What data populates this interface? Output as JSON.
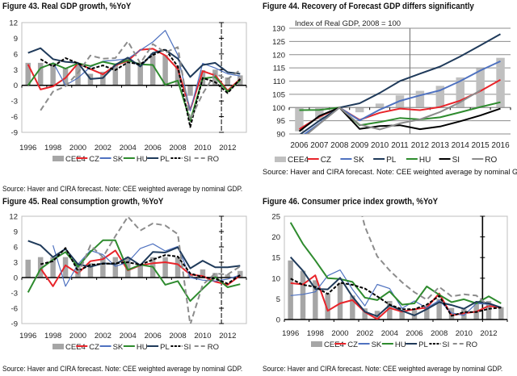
{
  "source_note": "Source: Haver and CIRA forecast. Note: CEE weighted average by nominal GDP.",
  "legend_colors": {
    "CEE4": "#a6a6a6",
    "CZ": "#e8242a",
    "SK": "#4f72c0",
    "HU": "#2e8b2e",
    "PL": "#1f3a5a",
    "SI": "#000000",
    "RO": "#8c8c8c"
  },
  "chart_data": [
    {
      "id": "fig43",
      "type": "bar+line",
      "title": "Figure 43. Real GDP growth, %YoY",
      "xlabel": "",
      "ylabel": "",
      "ylim": [
        -9,
        12
      ],
      "yticks": [
        -9,
        -6,
        -3,
        0,
        3,
        6,
        9,
        12
      ],
      "xtick_labels": [
        "1996",
        "1998",
        "2000",
        "2002",
        "2004",
        "2006",
        "2008",
        "2010",
        "2012"
      ],
      "x": [
        1996,
        1997,
        1998,
        1999,
        2000,
        2001,
        2002,
        2003,
        2004,
        2005,
        2006,
        2007,
        2008,
        2009,
        2010,
        2011,
        2012,
        2013
      ],
      "forecast_divider": 2011.5,
      "grid": false,
      "legend_position": "bottom",
      "bars": {
        "name": "CEE4",
        "values": [
          4.3,
          4.3,
          4.3,
          3.3,
          4.3,
          2.2,
          2.6,
          4.0,
          5.0,
          4.4,
          6.1,
          5.8,
          3.8,
          -2.0,
          2.9,
          3.0,
          1.5,
          1.9
        ]
      },
      "series": [
        {
          "name": "CZ",
          "style": "solid",
          "values": [
            4.0,
            -0.8,
            -0.2,
            1.4,
            4.2,
            3.1,
            2.1,
            3.8,
            4.7,
            6.8,
            7.0,
            5.7,
            3.1,
            -4.7,
            2.7,
            1.9,
            -1.0,
            1.2
          ]
        },
        {
          "name": "SK",
          "style": "solid-thin",
          "values": [
            null,
            null,
            4.4,
            0.0,
            1.4,
            3.5,
            4.6,
            4.8,
            5.1,
            6.7,
            8.3,
            10.5,
            5.8,
            -4.9,
            4.2,
            3.3,
            2.2,
            1.8
          ]
        },
        {
          "name": "HU",
          "style": "solid",
          "values": [
            0.0,
            3.3,
            4.2,
            3.2,
            4.2,
            3.7,
            4.5,
            4.0,
            4.8,
            4.0,
            3.9,
            0.1,
            0.9,
            -6.8,
            1.3,
            1.6,
            -1.2,
            1.0
          ]
        },
        {
          "name": "PL",
          "style": "solid",
          "values": [
            6.2,
            7.1,
            5.0,
            4.5,
            4.3,
            1.2,
            1.4,
            3.9,
            5.3,
            3.6,
            6.2,
            6.8,
            5.1,
            1.6,
            3.9,
            4.3,
            2.5,
            2.2
          ]
        },
        {
          "name": "SI",
          "style": "dashed-black",
          "values": [
            null,
            5.0,
            3.6,
            5.2,
            4.2,
            3.1,
            3.8,
            2.9,
            4.4,
            4.0,
            5.8,
            6.9,
            3.6,
            -8.0,
            1.4,
            0.6,
            -1.5,
            1.2
          ]
        },
        {
          "name": "RO",
          "style": "dashed-gray",
          "values": [
            null,
            -4.8,
            -1.2,
            -0.2,
            2.4,
            5.7,
            5.1,
            5.2,
            8.4,
            4.2,
            7.9,
            6.3,
            7.3,
            -6.6,
            -1.6,
            2.2,
            1.2,
            2.9
          ]
        }
      ]
    },
    {
      "id": "fig44",
      "type": "bar+line",
      "title": "Figure 44. Recovery of Forecast GDP differs significantly",
      "subtitle": "Index of Real GDP, 2008 = 100",
      "xlabel": "",
      "ylabel": "",
      "ylim": [
        90,
        130
      ],
      "yticks": [
        90,
        95,
        100,
        105,
        110,
        115,
        120,
        125,
        130
      ],
      "bar_base": 100,
      "xtick_labels": [
        "2006",
        "2007",
        "2008",
        "2009",
        "2010",
        "2011",
        "2012",
        "2013",
        "2014",
        "2015",
        "2016"
      ],
      "x": [
        2006,
        2007,
        2008,
        2009,
        2010,
        2011,
        2012,
        2013,
        2014,
        2015,
        2016
      ],
      "forecast_divider": 2011.5,
      "grid": true,
      "legend_position": "bottom",
      "bars": {
        "name": "CEE4",
        "values": [
          91.0,
          95.5,
          100.0,
          98.2,
          101.5,
          104.6,
          106.3,
          108.2,
          111.4,
          114.9,
          118.8
        ]
      },
      "series": [
        {
          "name": "CZ",
          "style": "solid",
          "values": [
            91.8,
            96.5,
            100.0,
            95.3,
            98.0,
            99.6,
            99.0,
            100.2,
            102.6,
            106.2,
            110.5
          ]
        },
        {
          "name": "SK",
          "style": "solid",
          "values": [
            88.5,
            94.0,
            100.0,
            95.1,
            99.2,
            102.5,
            104.6,
            106.5,
            110.0,
            114.0,
            117.5
          ]
        },
        {
          "name": "PL",
          "style": "solid",
          "values": [
            89.6,
            95.0,
            100.0,
            101.6,
            105.5,
            110.0,
            112.8,
            115.5,
            119.3,
            123.5,
            127.8
          ]
        },
        {
          "name": "HU",
          "style": "solid",
          "values": [
            99.0,
            99.1,
            100.0,
            93.3,
            94.5,
            96.0,
            95.5,
            96.3,
            98.2,
            100.2,
            102.0
          ]
        },
        {
          "name": "SI",
          "style": "solid",
          "values": [
            91.0,
            96.8,
            100.0,
            91.9,
            93.0,
            93.3,
            91.8,
            92.8,
            94.8,
            97.0,
            99.6
          ]
        },
        {
          "name": "RO",
          "style": "solid",
          "values": [
            87.5,
            93.8,
            100.0,
            93.5,
            91.7,
            94.0,
            95.5,
            98.3,
            102.0,
            106.5,
            null
          ]
        }
      ]
    },
    {
      "id": "fig45",
      "type": "bar+line",
      "title": "Figure 45. Real consumption growth, %YoY",
      "xlabel": "",
      "ylabel": "",
      "ylim": [
        -9,
        12
      ],
      "yticks": [
        -9,
        -6,
        -3,
        0,
        3,
        6,
        9,
        12
      ],
      "xtick_labels": [
        "1996",
        "1998",
        "2000",
        "2002",
        "2004",
        "2006",
        "2008",
        "2010",
        "2012"
      ],
      "x": [
        1996,
        1997,
        1998,
        1999,
        2000,
        2001,
        2002,
        2003,
        2004,
        2005,
        2006,
        2007,
        2008,
        2009,
        2010,
        2011,
        2012,
        2013
      ],
      "forecast_divider": 2011.5,
      "grid": false,
      "legend_position": "bottom",
      "bars": {
        "name": "CEE4",
        "values": [
          3.5,
          4.0,
          4.0,
          4.0,
          2.8,
          2.8,
          4.0,
          4.0,
          4.0,
          2.5,
          4.0,
          4.0,
          4.0,
          0.6,
          1.6,
          0.9,
          0.6,
          1.3
        ]
      },
      "series": [
        {
          "name": "CZ",
          "style": "solid",
          "values": [
            null,
            1.8,
            -1.7,
            2.4,
            0.8,
            3.2,
            3.6,
            5.3,
            1.4,
            2.4,
            2.8,
            3.0,
            2.6,
            0.6,
            0.3,
            -0.8,
            -1.4,
            0.4
          ]
        },
        {
          "name": "SK",
          "style": "solid-thin",
          "values": [
            null,
            null,
            6.3,
            -1.7,
            2.6,
            5.3,
            4.5,
            2.2,
            3.0,
            5.7,
            6.6,
            5.2,
            6.1,
            0.0,
            -0.5,
            -0.7,
            -0.3,
            0.5
          ]
        },
        {
          "name": "HU",
          "style": "solid",
          "values": [
            -2.9,
            1.7,
            3.5,
            5.0,
            2.1,
            5.0,
            7.3,
            7.3,
            1.5,
            2.5,
            2.1,
            -1.4,
            -0.7,
            -4.6,
            -2.2,
            0.1,
            -1.9,
            -1.3
          ]
        },
        {
          "name": "PL",
          "style": "solid",
          "values": [
            7.2,
            6.3,
            4.0,
            5.6,
            2.6,
            2.1,
            2.8,
            2.6,
            4.0,
            2.4,
            5.0,
            4.9,
            5.9,
            1.8,
            3.3,
            2.0,
            2.0,
            2.3
          ]
        },
        {
          "name": "SI",
          "style": "dashed-black",
          "values": [
            null,
            2.6,
            3.2,
            5.8,
            1.3,
            2.5,
            2.7,
            2.8,
            3.0,
            2.5,
            3.5,
            4.4,
            4.1,
            0.8,
            0.1,
            -0.2,
            -1.2,
            0.5
          ]
        },
        {
          "name": "RO",
          "style": "dashed-gray",
          "values": [
            null,
            -4.0,
            null,
            null,
            0.5,
            6.3,
            4.0,
            8.1,
            11.9,
            9.2,
            10.6,
            10.2,
            8.5,
            -9.2,
            -1.4,
            0.8,
            0.6,
            2.2
          ]
        }
      ]
    },
    {
      "id": "fig46",
      "type": "bar+line",
      "title": "Figure 46. Consumer price index growth, %YoY",
      "xlabel": "",
      "ylabel": "",
      "ylim": [
        0,
        25
      ],
      "yticks": [
        0,
        5,
        10,
        15,
        20,
        25
      ],
      "xtick_labels": [
        "1996",
        "1998",
        "2000",
        "2002",
        "2004",
        "2006",
        "2008",
        "2010",
        "2012"
      ],
      "x": [
        1996,
        1997,
        1998,
        1999,
        2000,
        2001,
        2002,
        2003,
        2004,
        2005,
        2006,
        2007,
        2008,
        2009,
        2010,
        2011,
        2012,
        2013
      ],
      "forecast_divider": 2011.5,
      "grid": false,
      "legend_position": "bottom",
      "bars": {
        "name": "CEE4",
        "values": [
          14.3,
          11.8,
          9.5,
          6.3,
          8.9,
          5.8,
          2.7,
          2.1,
          4.5,
          2.2,
          2.3,
          3.4,
          5.0,
          2.8,
          2.5,
          3.8,
          4.5,
          3.0
        ]
      },
      "series": [
        {
          "name": "CZ",
          "style": "solid",
          "values": [
            8.8,
            8.5,
            10.7,
            2.1,
            3.9,
            4.7,
            1.8,
            0.1,
            2.8,
            1.9,
            2.5,
            2.9,
            6.3,
            1.0,
            1.5,
            1.9,
            3.3,
            2.9
          ]
        },
        {
          "name": "SK",
          "style": "solid-thin",
          "values": [
            5.8,
            6.1,
            6.7,
            10.6,
            12.0,
            7.3,
            3.3,
            8.5,
            7.5,
            2.7,
            4.5,
            2.8,
            4.6,
            1.6,
            1.0,
            3.9,
            3.7,
            3.0
          ]
        },
        {
          "name": "HU",
          "style": "solid",
          "values": [
            23.5,
            18.3,
            14.3,
            10.0,
            9.8,
            9.1,
            5.3,
            4.7,
            6.8,
            3.6,
            3.9,
            8.0,
            6.0,
            4.2,
            4.9,
            3.9,
            5.6,
            3.9
          ]
        },
        {
          "name": "PL",
          "style": "solid",
          "values": [
            15.1,
            11.8,
            7.4,
            7.3,
            10.1,
            5.5,
            1.9,
            0.8,
            3.5,
            2.1,
            1.0,
            2.5,
            4.2,
            3.5,
            2.6,
            4.3,
            3.9,
            2.9
          ]
        },
        {
          "name": "SI",
          "style": "dashed-black",
          "values": [
            9.9,
            8.4,
            7.9,
            6.2,
            8.9,
            8.4,
            7.5,
            5.6,
            3.6,
            2.5,
            2.5,
            3.6,
            5.7,
            0.9,
            1.8,
            1.8,
            2.6,
            2.9
          ]
        },
        {
          "name": "RO",
          "style": "dashed-gray",
          "values": [
            null,
            null,
            null,
            null,
            null,
            34.5,
            22.5,
            15.3,
            11.9,
            9.0,
            6.6,
            4.8,
            7.9,
            5.6,
            6.1,
            5.8,
            3.3,
            null
          ]
        }
      ]
    }
  ]
}
